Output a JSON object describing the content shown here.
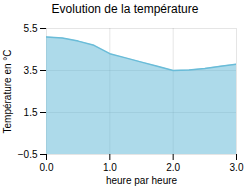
{
  "chart_data": {
    "type": "area",
    "title": "Evolution de la température",
    "xlabel": "heure par heure",
    "ylabel": "Température en °C",
    "x": [
      0,
      0.25,
      0.5,
      0.75,
      1.0,
      1.25,
      1.5,
      1.75,
      2.0,
      2.25,
      2.5,
      2.75,
      3.0
    ],
    "y": [
      5.1,
      5.05,
      4.9,
      4.7,
      4.3,
      4.1,
      3.9,
      3.7,
      3.5,
      3.52,
      3.6,
      3.7,
      3.8
    ],
    "color": "#6abcd8",
    "xlim": [
      0,
      3
    ],
    "ylim": [
      -0.5,
      5.5
    ],
    "xticks": [
      0,
      1,
      2,
      3
    ],
    "yticks": [
      -0.5,
      1.5,
      3.5,
      5.5
    ],
    "grid": true
  }
}
